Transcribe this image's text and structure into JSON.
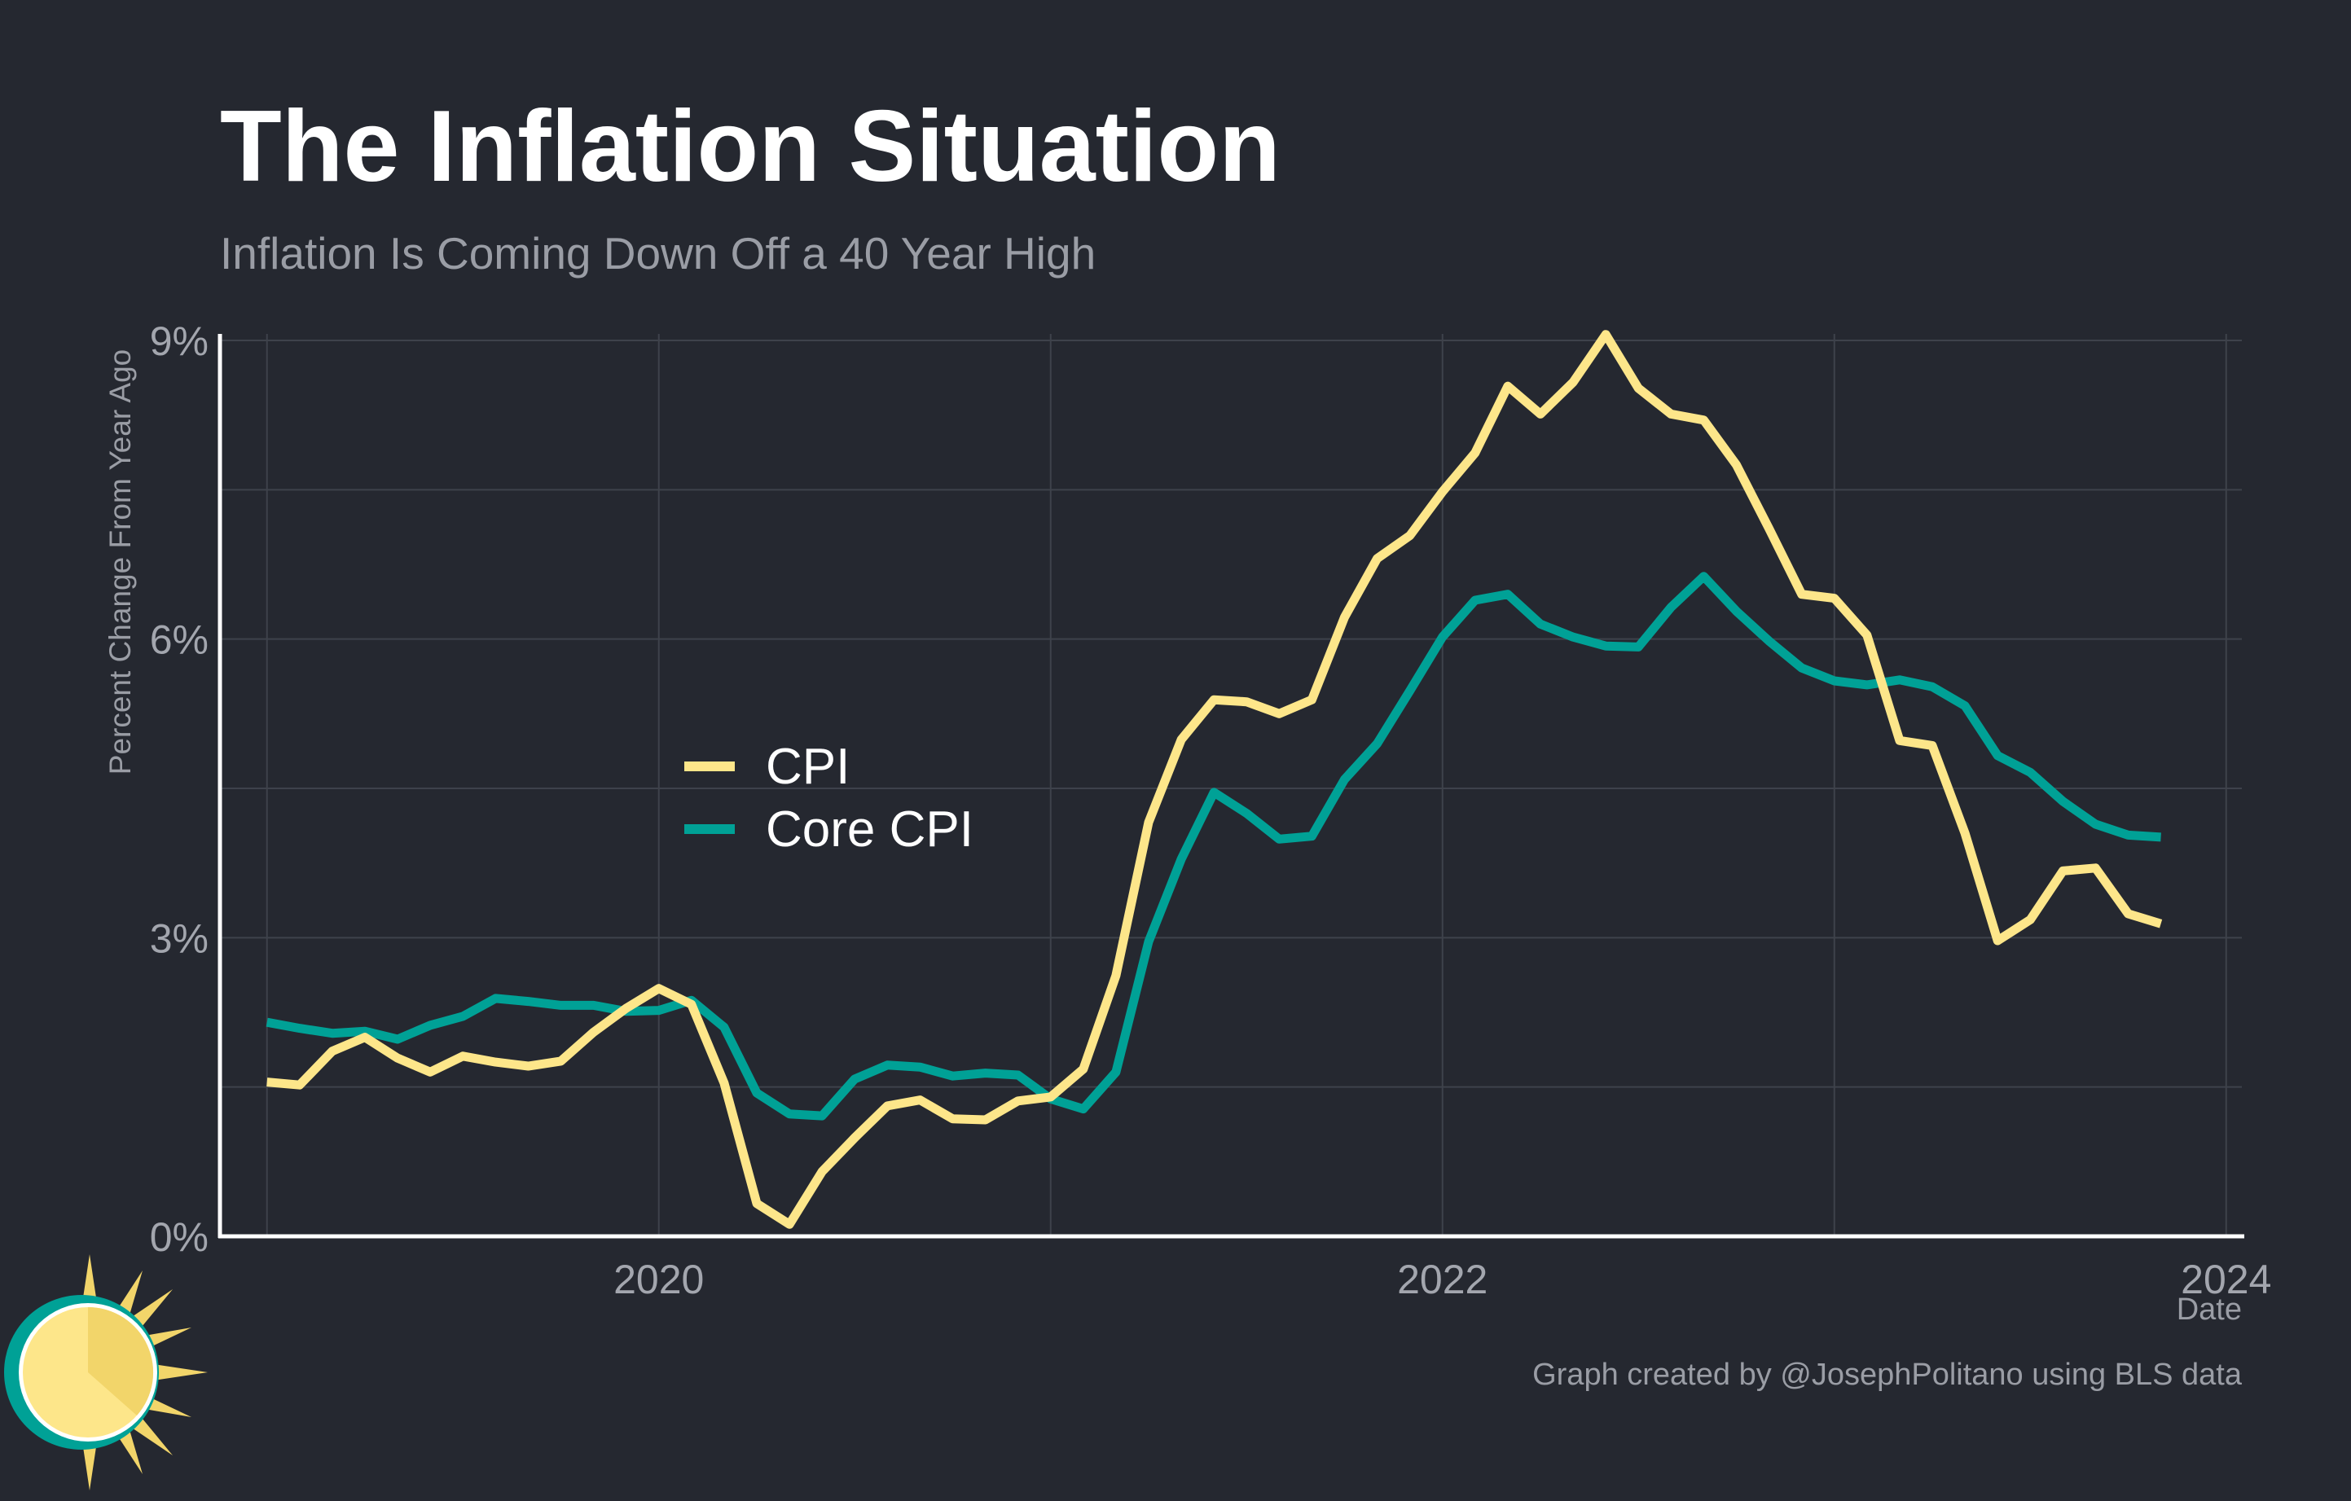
{
  "colors": {
    "background": "#252830",
    "cpi": "#FDE68A",
    "core_cpi": "#00A196",
    "grid": "#3E424B",
    "axis": "#FFFFFF",
    "title": "#FFFFFF",
    "subtitle": "#9A9DA5",
    "tick_label": "#A3A6AE",
    "caption": "#9A9DA5"
  },
  "logo": {
    "icon": "sun-clock-icon"
  },
  "chart_data": {
    "type": "line",
    "title": "The Inflation Situation",
    "subtitle": "Inflation Is Coming Down Off a 40 Year High",
    "xlabel": "Date",
    "ylabel": "Percent Change From Year Ago",
    "caption": "Graph created by @JosephPolitano using BLS data",
    "x_start": "2019-01",
    "x_step": "month",
    "xlim": [
      2018.88,
      2024.04
    ],
    "ylim": [
      0,
      9
    ],
    "x_ticks": [
      {
        "value": 2020,
        "label": "2020"
      },
      {
        "value": 2022,
        "label": "2022"
      },
      {
        "value": 2024,
        "label": "2024"
      }
    ],
    "x_minor_ticks": [
      2019,
      2021,
      2023
    ],
    "y_ticks": [
      {
        "value": 0,
        "label": "0%"
      },
      {
        "value": 3,
        "label": "3%"
      },
      {
        "value": 6,
        "label": "6%"
      },
      {
        "value": 9,
        "label": "9%"
      }
    ],
    "y_minor_ticks": [
      1.5,
      4.5,
      7.5
    ],
    "legend_position": "center-left",
    "series": [
      {
        "name": "CPI",
        "color": "#FDE68A",
        "values": [
          1.55,
          1.52,
          1.86,
          2.0,
          1.79,
          1.65,
          1.81,
          1.75,
          1.71,
          1.76,
          2.05,
          2.29,
          2.49,
          2.33,
          1.54,
          0.33,
          0.12,
          0.65,
          0.99,
          1.31,
          1.37,
          1.18,
          1.17,
          1.36,
          1.4,
          1.68,
          2.62,
          4.16,
          4.99,
          5.39,
          5.37,
          5.25,
          5.39,
          6.22,
          6.81,
          7.04,
          7.48,
          7.87,
          8.54,
          8.26,
          8.58,
          9.06,
          8.52,
          8.26,
          8.2,
          7.75,
          7.11,
          6.45,
          6.41,
          6.04,
          4.98,
          4.93,
          4.05,
          2.97,
          3.18,
          3.67,
          3.7,
          3.24,
          3.14
        ]
      },
      {
        "name": "Core CPI",
        "color": "#00A196",
        "values": [
          2.15,
          2.09,
          2.04,
          2.06,
          1.98,
          2.12,
          2.21,
          2.39,
          2.36,
          2.32,
          2.32,
          2.26,
          2.27,
          2.37,
          2.1,
          1.44,
          1.23,
          1.21,
          1.58,
          1.72,
          1.7,
          1.61,
          1.64,
          1.62,
          1.38,
          1.28,
          1.65,
          2.96,
          3.79,
          4.46,
          4.25,
          3.99,
          4.02,
          4.59,
          4.95,
          5.48,
          6.02,
          6.39,
          6.45,
          6.15,
          6.02,
          5.93,
          5.92,
          6.32,
          6.63,
          6.28,
          5.98,
          5.71,
          5.58,
          5.54,
          5.59,
          5.52,
          5.33,
          4.83,
          4.66,
          4.37,
          4.14,
          4.03,
          4.01
        ]
      }
    ]
  }
}
